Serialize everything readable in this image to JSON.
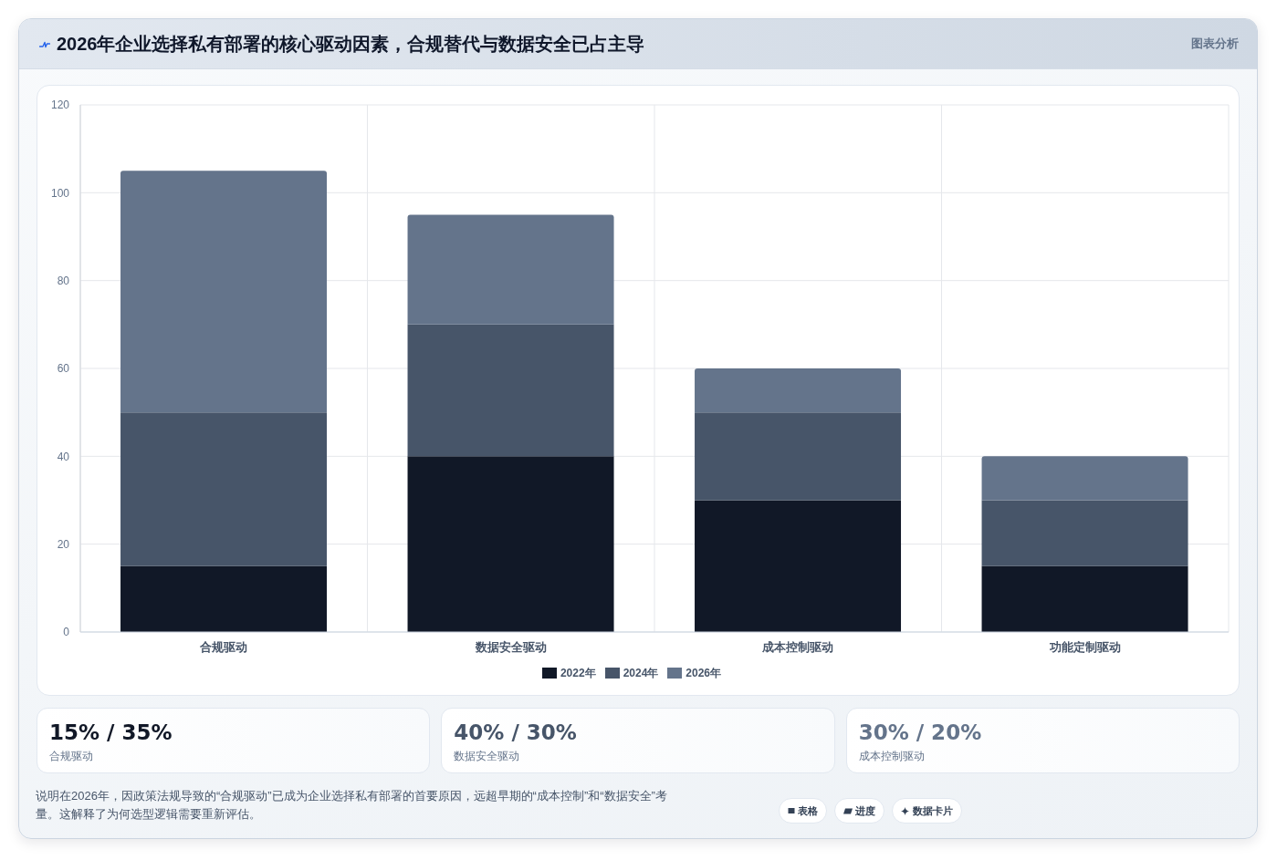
{
  "chart_data": [
    {
      "type": "bar",
      "title": "2026年企业选择私有部署的核心驱动因素，合规替代与数据安全已占主导",
      "subtitle": "图表分析",
      "categories": [
        "合规驱动",
        "数据安全驱动",
        "成本控制驱动",
        "功能定制驱动"
      ],
      "series": [
        {
          "name": "2022年",
          "color": "#111827",
          "values": [
            15,
            40,
            30,
            15
          ]
        },
        {
          "name": "2024年",
          "color": "#475569",
          "values": [
            35,
            30,
            20,
            15
          ]
        },
        {
          "name": "2026年",
          "color": "#64748b",
          "values": [
            55,
            25,
            10,
            10
          ]
        }
      ],
      "stacked": true,
      "ylim": [
        0,
        120
      ],
      "yticks": [
        0,
        20,
        40,
        60,
        80,
        100,
        120
      ],
      "grid": true,
      "legend": "bottom",
      "annotations": [
        "说明在2026年，因政策法规导致的“合规驱动”已成为企业选择私有部署的首要原因，远超早期的“成本控制”和“数据安全”考量。这解释了为何选型逻辑需要重新评估。",
        "表格",
        "进度",
        "数据卡片"
      ]
    },
    {
      "type": "other",
      "annotations": [
        "15% / 35%",
        "合规驱动",
        "40% / 30%",
        "数据安全驱动",
        "30% / 20%",
        "成本控制驱动"
      ],
      "colors": [
        "#111827",
        "#475569",
        "#64748b"
      ]
    }
  ]
}
